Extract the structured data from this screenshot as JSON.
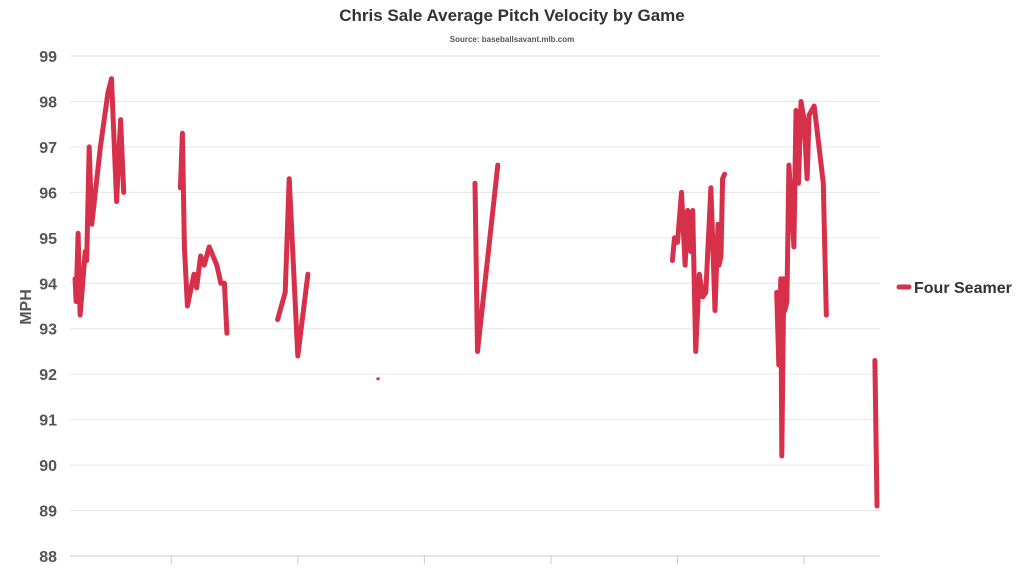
{
  "chart_data": {
    "type": "line",
    "title": "Chris Sale Average Pitch Velocity by Game",
    "subtitle": "Source: baseballsavant.mlb.com",
    "xlabel": "",
    "ylabel": "MPH",
    "ylim": [
      88,
      99
    ],
    "yticks": [
      88,
      89,
      90,
      91,
      92,
      93,
      94,
      95,
      96,
      97,
      98,
      99
    ],
    "xlim": [
      0,
      160
    ],
    "grid": true,
    "legend_position": "right",
    "colors": {
      "series": "#d7304a",
      "grid": "#e6e6e6",
      "axis": "#c8c8d8"
    },
    "series": [
      {
        "name": "Four Seamer",
        "segments": [
          [
            [
              1.0,
              94.1
            ],
            [
              1.2,
              93.6
            ],
            [
              1.6,
              95.1
            ],
            [
              2.0,
              93.3
            ],
            [
              2.5,
              94.0
            ],
            [
              3.0,
              94.7
            ],
            [
              3.3,
              94.5
            ],
            [
              3.8,
              97.0
            ],
            [
              4.3,
              95.3
            ],
            [
              5.0,
              96.0
            ],
            [
              6.0,
              97.0
            ],
            [
              7.5,
              98.2
            ],
            [
              8.2,
              98.5
            ],
            [
              9.2,
              95.8
            ],
            [
              10.0,
              97.6
            ],
            [
              10.6,
              96.0
            ]
          ],
          [
            [
              21.8,
              96.1
            ],
            [
              22.2,
              97.3
            ],
            [
              22.6,
              94.8
            ],
            [
              23.2,
              93.5
            ],
            [
              24.5,
              94.2
            ],
            [
              25.0,
              93.9
            ],
            [
              25.8,
              94.6
            ],
            [
              26.5,
              94.4
            ],
            [
              27.5,
              94.8
            ],
            [
              29.0,
              94.4
            ],
            [
              29.8,
              94.0
            ],
            [
              30.5,
              94.0
            ],
            [
              31.0,
              92.9
            ]
          ],
          [
            [
              41.0,
              93.2
            ],
            [
              42.5,
              93.8
            ],
            [
              43.3,
              96.3
            ],
            [
              45.0,
              92.4
            ],
            [
              47.0,
              94.2
            ]
          ],
          [
            [
              60.8,
              91.9
            ],
            [
              60.9,
              91.9
            ]
          ],
          [
            [
              80.0,
              96.2
            ],
            [
              80.5,
              92.5
            ],
            [
              84.5,
              96.6
            ]
          ],
          [
            [
              119.0,
              94.5
            ],
            [
              119.4,
              95.0
            ],
            [
              120.0,
              94.9
            ],
            [
              120.8,
              96.0
            ],
            [
              121.5,
              94.4
            ],
            [
              122.0,
              95.6
            ],
            [
              122.6,
              94.7
            ],
            [
              123.0,
              95.6
            ],
            [
              123.6,
              92.5
            ],
            [
              124.3,
              94.2
            ],
            [
              125.0,
              93.7
            ],
            [
              125.6,
              93.8
            ],
            [
              126.6,
              96.1
            ],
            [
              127.4,
              93.4
            ],
            [
              128.0,
              95.3
            ],
            [
              128.2,
              94.4
            ],
            [
              128.6,
              94.6
            ],
            [
              128.9,
              96.3
            ],
            [
              129.3,
              96.4
            ]
          ],
          [
            [
              139.6,
              93.8
            ],
            [
              140.0,
              92.2
            ],
            [
              140.4,
              94.1
            ],
            [
              140.6,
              90.2
            ],
            [
              141.0,
              94.1
            ],
            [
              141.2,
              93.4
            ],
            [
              141.6,
              93.6
            ],
            [
              142.0,
              96.6
            ],
            [
              143.0,
              94.8
            ],
            [
              143.4,
              97.8
            ],
            [
              143.9,
              96.2
            ],
            [
              144.4,
              98.0
            ],
            [
              145.0,
              97.6
            ],
            [
              145.6,
              96.3
            ],
            [
              146.0,
              97.7
            ],
            [
              147.0,
              97.9
            ],
            [
              148.8,
              96.2
            ],
            [
              149.4,
              93.3
            ]
          ],
          [
            [
              159.0,
              92.3
            ],
            [
              159.4,
              89.1
            ]
          ]
        ]
      }
    ]
  }
}
